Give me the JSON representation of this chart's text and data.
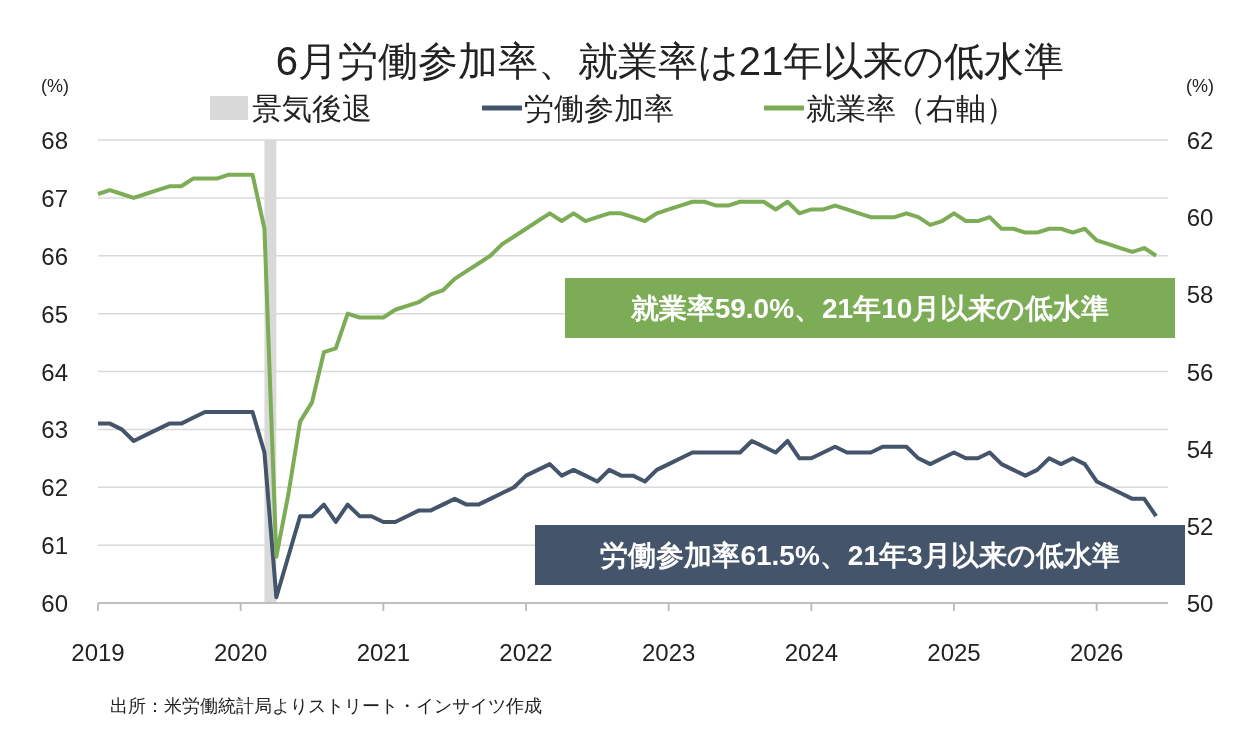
{
  "chart_data": {
    "type": "line",
    "title": "6月労働参加率、就業率は21年以来の低水準",
    "ylabel": "(%)",
    "y2label": "(%)",
    "x": [
      "2019-01",
      "2019-02",
      "2019-03",
      "2019-04",
      "2019-05",
      "2019-06",
      "2019-07",
      "2019-08",
      "2019-09",
      "2019-10",
      "2019-11",
      "2019-12",
      "2020-01",
      "2020-02",
      "2020-03",
      "2020-04",
      "2020-05",
      "2020-06",
      "2020-07",
      "2020-08",
      "2020-09",
      "2020-10",
      "2020-11",
      "2020-12",
      "2021-01",
      "2021-02",
      "2021-03",
      "2021-04",
      "2021-05",
      "2021-06",
      "2021-07",
      "2021-08",
      "2021-09",
      "2021-10",
      "2021-11",
      "2021-12",
      "2022-01",
      "2022-02",
      "2022-03",
      "2022-04",
      "2022-05",
      "2022-06",
      "2022-07",
      "2022-08",
      "2022-09",
      "2022-10",
      "2022-11",
      "2022-12",
      "2023-01",
      "2023-02",
      "2023-03",
      "2023-04",
      "2023-05",
      "2023-06",
      "2023-07",
      "2023-08",
      "2023-09",
      "2023-10",
      "2023-11",
      "2023-12",
      "2024-01",
      "2024-02",
      "2024-03",
      "2024-04",
      "2024-05",
      "2024-06",
      "2024-07",
      "2024-08",
      "2024-09",
      "2024-10",
      "2024-11",
      "2024-12",
      "2025-01",
      "2025-02",
      "2025-03",
      "2025-04",
      "2025-05",
      "2025-06",
      "2025-07",
      "2025-08",
      "2025-09",
      "2025-10",
      "2025-11",
      "2025-12",
      "2026-01",
      "2026-02",
      "2026-03",
      "2026-04",
      "2026-05",
      "2026-06"
    ],
    "series": [
      {
        "name": "労働参加率",
        "color": "#44546a",
        "values": [
          63.1,
          63.1,
          63.0,
          62.8,
          62.9,
          63.0,
          63.1,
          63.1,
          63.2,
          63.3,
          63.3,
          63.3,
          63.3,
          63.3,
          62.6,
          60.1,
          60.8,
          61.5,
          61.5,
          61.7,
          61.4,
          61.7,
          61.5,
          61.5,
          61.4,
          61.4,
          61.5,
          61.6,
          61.6,
          61.7,
          61.8,
          61.7,
          61.7,
          61.8,
          61.9,
          62.0,
          62.2,
          62.3,
          62.4,
          62.2,
          62.3,
          62.2,
          62.1,
          62.3,
          62.2,
          62.2,
          62.1,
          62.3,
          62.4,
          62.5,
          62.6,
          62.6,
          62.6,
          62.6,
          62.6,
          62.8,
          62.7,
          62.6,
          62.8,
          62.5,
          62.5,
          62.6,
          62.7,
          62.6,
          62.6,
          62.6,
          62.7,
          62.7,
          62.7,
          62.5,
          62.4,
          62.5,
          62.6,
          62.5,
          62.5,
          62.6,
          62.4,
          62.3,
          62.2,
          62.3,
          62.5,
          62.4,
          62.5,
          62.4,
          62.1,
          62.0,
          61.9,
          61.8,
          61.8,
          61.5
        ]
      },
      {
        "name": "就業率（右軸）",
        "color": "#7cac55",
        "axis": "y2",
        "values": [
          60.6,
          60.7,
          60.6,
          60.5,
          60.6,
          60.7,
          60.8,
          60.8,
          61.0,
          61.0,
          61.0,
          61.1,
          61.1,
          61.1,
          59.7,
          51.2,
          52.8,
          54.7,
          55.2,
          56.5,
          56.6,
          57.5,
          57.4,
          57.4,
          57.4,
          57.6,
          57.7,
          57.8,
          58.0,
          58.1,
          58.4,
          58.6,
          58.8,
          59.0,
          59.3,
          59.5,
          59.7,
          59.9,
          60.1,
          59.9,
          60.1,
          59.9,
          60.0,
          60.1,
          60.1,
          60.0,
          59.9,
          60.1,
          60.2,
          60.3,
          60.4,
          60.4,
          60.3,
          60.3,
          60.4,
          60.4,
          60.4,
          60.2,
          60.4,
          60.1,
          60.2,
          60.2,
          60.3,
          60.2,
          60.1,
          60.0,
          60.0,
          60.0,
          60.1,
          60.0,
          59.8,
          59.9,
          60.1,
          59.9,
          59.9,
          60.0,
          59.7,
          59.7,
          59.6,
          59.6,
          59.7,
          59.7,
          59.6,
          59.7,
          59.4,
          59.3,
          59.2,
          59.1,
          59.2,
          59.0
        ]
      }
    ],
    "bands": [
      {
        "axis": "x",
        "from": "2020-03",
        "to": "2020-04",
        "label": "景気後退",
        "color": "#d9d9d9"
      }
    ],
    "xlim": [
      "2019-01",
      "2026-07"
    ],
    "xticks": [
      "2019",
      "2020",
      "2021",
      "2022",
      "2023",
      "2024",
      "2025",
      "2026"
    ],
    "ylim": [
      60,
      68
    ],
    "yticks": [
      60,
      61,
      62,
      63,
      64,
      65,
      66,
      67,
      68
    ],
    "y2lim": [
      50,
      62
    ],
    "y2ticks": [
      50,
      52,
      54,
      56,
      58,
      60,
      62
    ],
    "grid": "y",
    "legend": "top",
    "marker": "none",
    "line_style": "solid",
    "annotations": [
      "就業率59.0%、21年10月以来の低水準",
      "労働参加率61.5%、21年3月以来の低水準",
      "出所：米労働統計局よりストリート・インサイツ作成"
    ]
  }
}
